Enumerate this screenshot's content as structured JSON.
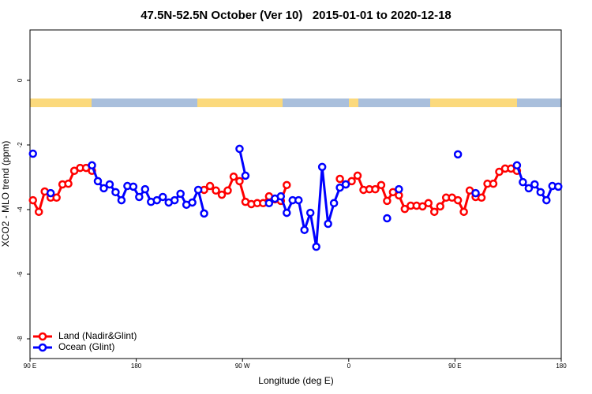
{
  "chart_data": {
    "type": "line",
    "title": "47.5N-52.5N October (Ver 10)   2015-01-01 to 2020-12-18",
    "x_label": "Longitude (deg E)",
    "y_label": "XCO2 - MLO trend (ppm)",
    "xlim": [
      90,
      540
    ],
    "xticks": [
      {
        "value": 90,
        "label": "90 E"
      },
      {
        "value": 180,
        "label": "180"
      },
      {
        "value": 270,
        "label": "90 W"
      },
      {
        "value": 360,
        "label": "0"
      },
      {
        "value": 450,
        "label": "90 E"
      },
      {
        "value": 540,
        "label": "180"
      }
    ],
    "ylim": [
      -8.61,
      1.56
    ],
    "yticks": [
      0,
      -2,
      -4,
      -6,
      -8
    ],
    "legend": "bottomleft",
    "x": [
      92.5,
      97.5,
      102.5,
      107.5,
      112.5,
      117.5,
      122.5,
      127.5,
      132.5,
      137.5,
      142.5,
      147.5,
      152.5,
      157.5,
      162.5,
      167.5,
      172.5,
      177.5,
      182.5,
      187.5,
      192.5,
      197.5,
      202.5,
      207.5,
      212.5,
      217.5,
      222.5,
      227.5,
      232.5,
      237.5,
      242.5,
      247.5,
      252.5,
      257.5,
      262.5,
      267.5,
      272.5,
      277.5,
      282.5,
      287.5,
      292.5,
      297.5,
      302.5,
      307.5,
      312.5,
      317.5,
      322.5,
      327.5,
      332.5,
      337.5,
      342.5,
      347.5,
      352.5,
      357.5,
      362.5,
      367.5,
      372.5,
      377.5,
      382.5,
      387.5,
      392.5,
      397.5,
      402.5,
      407.5,
      412.5,
      417.5,
      422.5,
      427.5,
      432.5,
      437.5,
      442.5,
      447.5,
      452.5,
      457.5,
      462.5,
      467.5,
      472.5,
      477.5,
      482.5,
      487.5,
      492.5,
      497.5,
      502.5,
      507.5,
      512.5,
      517.5,
      522.5,
      527.5,
      532.5,
      537.5
    ],
    "series": [
      {
        "name": "Land (Nadir&Glint)",
        "color": "#ff0000",
        "values": [
          -3.71,
          -4.07,
          -3.44,
          -3.63,
          -3.63,
          -3.22,
          -3.2,
          -2.8,
          -2.71,
          -2.71,
          -2.8,
          null,
          null,
          null,
          null,
          null,
          null,
          null,
          null,
          null,
          null,
          null,
          null,
          null,
          null,
          null,
          null,
          null,
          null,
          -3.39,
          -3.27,
          -3.41,
          -3.54,
          -3.41,
          -2.98,
          -3.12,
          -3.76,
          -3.83,
          -3.8,
          -3.8,
          -3.59,
          -3.68,
          -3.73,
          -3.24,
          null,
          null,
          null,
          null,
          null,
          null,
          null,
          null,
          -3.05,
          -3.22,
          -3.12,
          -2.95,
          -3.39,
          -3.37,
          -3.37,
          -3.24,
          -3.73,
          -3.46,
          -3.56,
          -3.98,
          -3.88,
          -3.88,
          -3.9,
          -3.8,
          -4.07,
          -3.9,
          -3.63,
          -3.63,
          -3.71,
          -4.07,
          -3.41,
          -3.61,
          -3.63,
          -3.2,
          -3.2,
          -2.83,
          -2.73,
          -2.73,
          -2.8,
          null,
          null,
          null,
          null,
          null,
          null,
          null
        ]
      },
      {
        "name": "Ocean (Glint)",
        "color": "#0000ff",
        "values": [
          -2.27,
          null,
          null,
          -3.49,
          null,
          null,
          null,
          null,
          null,
          null,
          -2.63,
          -3.12,
          -3.34,
          -3.22,
          -3.46,
          -3.71,
          -3.27,
          -3.29,
          -3.61,
          -3.37,
          -3.76,
          -3.71,
          -3.61,
          -3.78,
          -3.71,
          -3.51,
          -3.85,
          -3.78,
          -3.39,
          -4.12,
          null,
          null,
          null,
          null,
          null,
          -2.12,
          -2.95,
          null,
          null,
          null,
          -3.8,
          -3.66,
          -3.59,
          -4.1,
          -3.71,
          -3.71,
          -4.63,
          -4.1,
          -5.15,
          -2.68,
          -4.44,
          -3.8,
          -3.32,
          -3.22,
          null,
          null,
          null,
          null,
          null,
          null,
          -4.27,
          null,
          -3.37,
          null,
          null,
          null,
          null,
          null,
          null,
          null,
          null,
          null,
          -2.29,
          null,
          null,
          -3.49,
          null,
          null,
          null,
          null,
          null,
          null,
          -2.63,
          -3.15,
          -3.34,
          -3.22,
          -3.46,
          -3.71,
          -3.27,
          -3.29
        ]
      }
    ]
  }
}
